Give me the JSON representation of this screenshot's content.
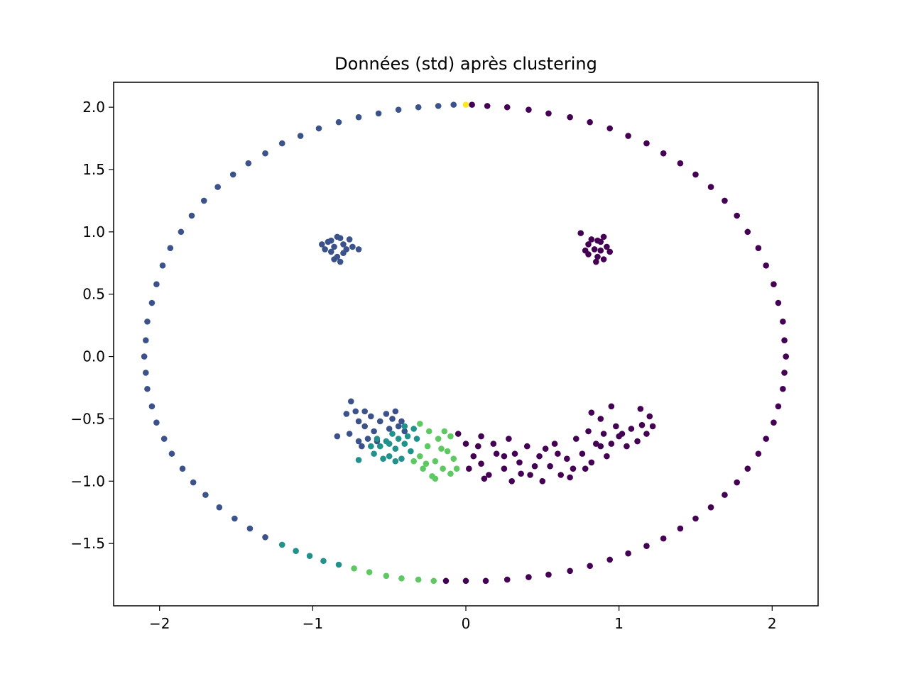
{
  "chart_data": {
    "type": "scatter",
    "title": "Données (std) après clustering",
    "xlabel": "",
    "ylabel": "",
    "xlim": [
      -2.3,
      2.3
    ],
    "ylim": [
      -2.0,
      2.2
    ],
    "x_ticks": [
      -2,
      -1,
      0,
      1,
      2
    ],
    "x_tick_labels": [
      "−2",
      "−1",
      "0",
      "1",
      "2"
    ],
    "y_ticks": [
      -1.5,
      -1.0,
      -0.5,
      0.0,
      0.5,
      1.0,
      1.5,
      2.0
    ],
    "y_tick_labels": [
      "−1.5",
      "−1.0",
      "−0.5",
      "0.0",
      "0.5",
      "1.0",
      "1.5",
      "2.0"
    ],
    "grid": false,
    "legend": "none",
    "cluster_colors": {
      "0": "#440154",
      "1": "#3b528b",
      "2": "#21918c",
      "3": "#5ec962",
      "4": "#fde725"
    },
    "series": [
      {
        "cluster": 4,
        "points": [
          [
            0.0,
            2.02
          ]
        ]
      },
      {
        "cluster": 0,
        "points": [
          [
            0.04,
            2.02
          ],
          [
            0.14,
            2.01
          ],
          [
            0.27,
            2.0
          ],
          [
            0.41,
            1.98
          ],
          [
            0.54,
            1.95
          ],
          [
            0.68,
            1.92
          ],
          [
            0.81,
            1.88
          ],
          [
            0.94,
            1.83
          ],
          [
            1.06,
            1.77
          ],
          [
            1.18,
            1.71
          ],
          [
            1.29,
            1.63
          ],
          [
            1.4,
            1.55
          ],
          [
            1.5,
            1.46
          ],
          [
            1.6,
            1.36
          ],
          [
            1.69,
            1.25
          ],
          [
            1.77,
            1.13
          ],
          [
            1.84,
            1.0
          ],
          [
            1.91,
            0.87
          ],
          [
            1.96,
            0.73
          ],
          [
            2.01,
            0.58
          ],
          [
            2.04,
            0.43
          ],
          [
            2.07,
            0.28
          ],
          [
            2.08,
            0.13
          ],
          [
            2.09,
            0.0
          ],
          [
            2.08,
            -0.13
          ],
          [
            2.07,
            -0.26
          ],
          [
            2.04,
            -0.4
          ],
          [
            2.01,
            -0.53
          ],
          [
            1.96,
            -0.66
          ],
          [
            1.91,
            -0.78
          ],
          [
            1.84,
            -0.9
          ],
          [
            1.77,
            -1.01
          ],
          [
            1.69,
            -1.11
          ],
          [
            1.6,
            -1.21
          ],
          [
            1.5,
            -1.3
          ],
          [
            1.4,
            -1.38
          ],
          [
            1.29,
            -1.46
          ],
          [
            1.18,
            -1.52
          ],
          [
            1.06,
            -1.58
          ],
          [
            0.94,
            -1.63
          ],
          [
            0.81,
            -1.68
          ],
          [
            0.68,
            -1.72
          ],
          [
            0.54,
            -1.75
          ],
          [
            0.41,
            -1.77
          ],
          [
            0.27,
            -1.79
          ],
          [
            0.13,
            -1.8
          ],
          [
            0.0,
            -1.8
          ],
          [
            -0.13,
            -1.8
          ],
          [
            0.75,
            0.99
          ],
          [
            0.8,
            0.9
          ],
          [
            0.84,
            0.86
          ],
          [
            0.88,
            0.92
          ],
          [
            0.92,
            0.88
          ],
          [
            0.86,
            0.8
          ],
          [
            0.9,
            0.78
          ],
          [
            0.78,
            0.85
          ],
          [
            0.82,
            0.94
          ],
          [
            0.94,
            0.84
          ],
          [
            0.86,
            0.93
          ],
          [
            0.9,
            0.96
          ],
          [
            0.8,
            0.82
          ],
          [
            0.85,
            0.76
          ],
          [
            0.88,
            0.85
          ],
          [
            -0.05,
            -0.62
          ],
          [
            0.0,
            -0.7
          ],
          [
            0.05,
            -0.8
          ],
          [
            0.02,
            -0.9
          ],
          [
            0.1,
            -0.86
          ],
          [
            0.08,
            -0.72
          ],
          [
            0.15,
            -0.95
          ],
          [
            0.2,
            -0.78
          ],
          [
            0.25,
            -0.9
          ],
          [
            0.3,
            -1.0
          ],
          [
            0.35,
            -0.85
          ],
          [
            0.4,
            -0.72
          ],
          [
            0.42,
            -0.95
          ],
          [
            0.48,
            -0.8
          ],
          [
            0.5,
            -1.0
          ],
          [
            0.55,
            -0.88
          ],
          [
            0.58,
            -0.7
          ],
          [
            0.62,
            -0.95
          ],
          [
            0.66,
            -0.82
          ],
          [
            0.7,
            -0.9
          ],
          [
            0.72,
            -0.66
          ],
          [
            0.76,
            -0.78
          ],
          [
            0.8,
            -0.6
          ],
          [
            0.82,
            -0.85
          ],
          [
            0.85,
            -0.7
          ],
          [
            0.9,
            -0.62
          ],
          [
            0.92,
            -0.8
          ],
          [
            0.95,
            -0.7
          ],
          [
            0.98,
            -0.56
          ],
          [
            1.02,
            -0.62
          ],
          [
            1.05,
            -0.72
          ],
          [
            1.08,
            -0.58
          ],
          [
            1.12,
            -0.68
          ],
          [
            1.15,
            -0.55
          ],
          [
            1.18,
            -0.62
          ],
          [
            1.2,
            -0.48
          ],
          [
            1.22,
            -0.56
          ],
          [
            1.14,
            -0.42
          ],
          [
            0.88,
            -0.5
          ],
          [
            0.82,
            -0.45
          ],
          [
            0.95,
            -0.4
          ],
          [
            0.1,
            -0.64
          ],
          [
            0.18,
            -0.7
          ],
          [
            0.28,
            -0.66
          ],
          [
            0.36,
            -0.94
          ],
          [
            0.45,
            -0.88
          ],
          [
            0.6,
            -0.78
          ],
          [
            0.68,
            -0.97
          ],
          [
            0.25,
            -0.8
          ],
          [
            0.12,
            -0.98
          ],
          [
            0.32,
            -0.78
          ],
          [
            0.52,
            -0.74
          ],
          [
            0.78,
            -0.9
          ],
          [
            0.88,
            -0.72
          ],
          [
            1.0,
            -0.64
          ]
        ]
      },
      {
        "cluster": 1,
        "points": [
          [
            -0.08,
            2.02
          ],
          [
            -0.18,
            2.01
          ],
          [
            -0.31,
            2.0
          ],
          [
            -0.44,
            1.98
          ],
          [
            -0.57,
            1.95
          ],
          [
            -0.7,
            1.92
          ],
          [
            -0.83,
            1.88
          ],
          [
            -0.96,
            1.83
          ],
          [
            -1.08,
            1.77
          ],
          [
            -1.2,
            1.71
          ],
          [
            -1.31,
            1.63
          ],
          [
            -1.42,
            1.55
          ],
          [
            -1.52,
            1.46
          ],
          [
            -1.62,
            1.36
          ],
          [
            -1.71,
            1.25
          ],
          [
            -1.79,
            1.13
          ],
          [
            -1.86,
            1.0
          ],
          [
            -1.93,
            0.87
          ],
          [
            -1.98,
            0.73
          ],
          [
            -2.02,
            0.58
          ],
          [
            -2.05,
            0.43
          ],
          [
            -2.08,
            0.28
          ],
          [
            -2.09,
            0.13
          ],
          [
            -2.1,
            0.0
          ],
          [
            -2.09,
            -0.13
          ],
          [
            -2.08,
            -0.26
          ],
          [
            -2.05,
            -0.4
          ],
          [
            -2.02,
            -0.53
          ],
          [
            -1.97,
            -0.66
          ],
          [
            -1.92,
            -0.78
          ],
          [
            -1.85,
            -0.9
          ],
          [
            -1.78,
            -1.01
          ],
          [
            -1.7,
            -1.11
          ],
          [
            -1.61,
            -1.21
          ],
          [
            -1.51,
            -1.3
          ],
          [
            -1.41,
            -1.38
          ],
          [
            -1.31,
            -1.45
          ],
          [
            -0.9,
            0.92
          ],
          [
            -0.86,
            0.88
          ],
          [
            -0.82,
            0.95
          ],
          [
            -0.78,
            0.86
          ],
          [
            -0.84,
            0.8
          ],
          [
            -0.88,
            0.84
          ],
          [
            -0.92,
            0.86
          ],
          [
            -0.8,
            0.9
          ],
          [
            -0.74,
            0.88
          ],
          [
            -0.86,
            0.78
          ],
          [
            -0.82,
            0.76
          ],
          [
            -0.76,
            0.94
          ],
          [
            -0.7,
            0.86
          ],
          [
            -0.94,
            0.9
          ],
          [
            -0.84,
            0.96
          ],
          [
            -0.8,
            0.83
          ],
          [
            -0.88,
            0.93
          ],
          [
            -0.75,
            -0.36
          ],
          [
            -0.72,
            -0.44
          ],
          [
            -0.78,
            -0.46
          ],
          [
            -0.7,
            -0.52
          ],
          [
            -0.66,
            -0.56
          ],
          [
            -0.62,
            -0.48
          ],
          [
            -0.6,
            -0.6
          ],
          [
            -0.64,
            -0.66
          ],
          [
            -0.68,
            -0.72
          ],
          [
            -0.56,
            -0.52
          ],
          [
            -0.52,
            -0.46
          ],
          [
            -0.48,
            -0.5
          ],
          [
            -0.44,
            -0.56
          ],
          [
            -0.4,
            -0.6
          ],
          [
            -0.42,
            -0.52
          ],
          [
            -0.76,
            -0.62
          ],
          [
            -0.84,
            -0.64
          ],
          [
            -0.7,
            -0.68
          ],
          [
            -0.58,
            -0.68
          ],
          [
            -0.5,
            -0.58
          ],
          [
            -0.46,
            -0.44
          ],
          [
            -0.66,
            -0.44
          ]
        ]
      },
      {
        "cluster": 2,
        "points": [
          [
            -1.2,
            -1.51
          ],
          [
            -1.11,
            -1.56
          ],
          [
            -1.02,
            -1.6
          ],
          [
            -0.93,
            -1.64
          ],
          [
            -0.83,
            -1.67
          ],
          [
            -0.6,
            -0.78
          ],
          [
            -0.56,
            -0.72
          ],
          [
            -0.52,
            -0.68
          ],
          [
            -0.5,
            -0.8
          ],
          [
            -0.48,
            -0.62
          ],
          [
            -0.46,
            -0.74
          ],
          [
            -0.44,
            -0.66
          ],
          [
            -0.42,
            -0.82
          ],
          [
            -0.4,
            -0.7
          ],
          [
            -0.38,
            -0.64
          ],
          [
            -0.54,
            -0.82
          ],
          [
            -0.58,
            -0.66
          ],
          [
            -0.36,
            -0.76
          ],
          [
            -0.34,
            -0.58
          ],
          [
            -0.5,
            -0.7
          ],
          [
            -0.46,
            -0.84
          ],
          [
            -0.62,
            -0.72
          ],
          [
            -0.7,
            -0.83
          ],
          [
            -0.32,
            -0.66
          ],
          [
            -0.4,
            -0.56
          ]
        ]
      },
      {
        "cluster": 3,
        "points": [
          [
            -0.73,
            -1.7
          ],
          [
            -0.63,
            -1.73
          ],
          [
            -0.52,
            -1.76
          ],
          [
            -0.42,
            -1.78
          ],
          [
            -0.31,
            -1.79
          ],
          [
            -0.21,
            -1.8
          ],
          [
            -0.3,
            -0.8
          ],
          [
            -0.28,
            -0.9
          ],
          [
            -0.25,
            -0.72
          ],
          [
            -0.22,
            -0.96
          ],
          [
            -0.2,
            -0.84
          ],
          [
            -0.18,
            -0.66
          ],
          [
            -0.15,
            -0.9
          ],
          [
            -0.12,
            -0.76
          ],
          [
            -0.1,
            -0.94
          ],
          [
            -0.08,
            -0.82
          ],
          [
            -0.14,
            -0.6
          ],
          [
            -0.24,
            -0.6
          ],
          [
            -0.3,
            -0.54
          ],
          [
            -0.2,
            -0.98
          ],
          [
            -0.26,
            -0.86
          ],
          [
            -0.16,
            -0.74
          ],
          [
            -0.06,
            -0.9
          ],
          [
            -0.1,
            -0.64
          ],
          [
            -0.34,
            -0.84
          ]
        ]
      }
    ]
  }
}
